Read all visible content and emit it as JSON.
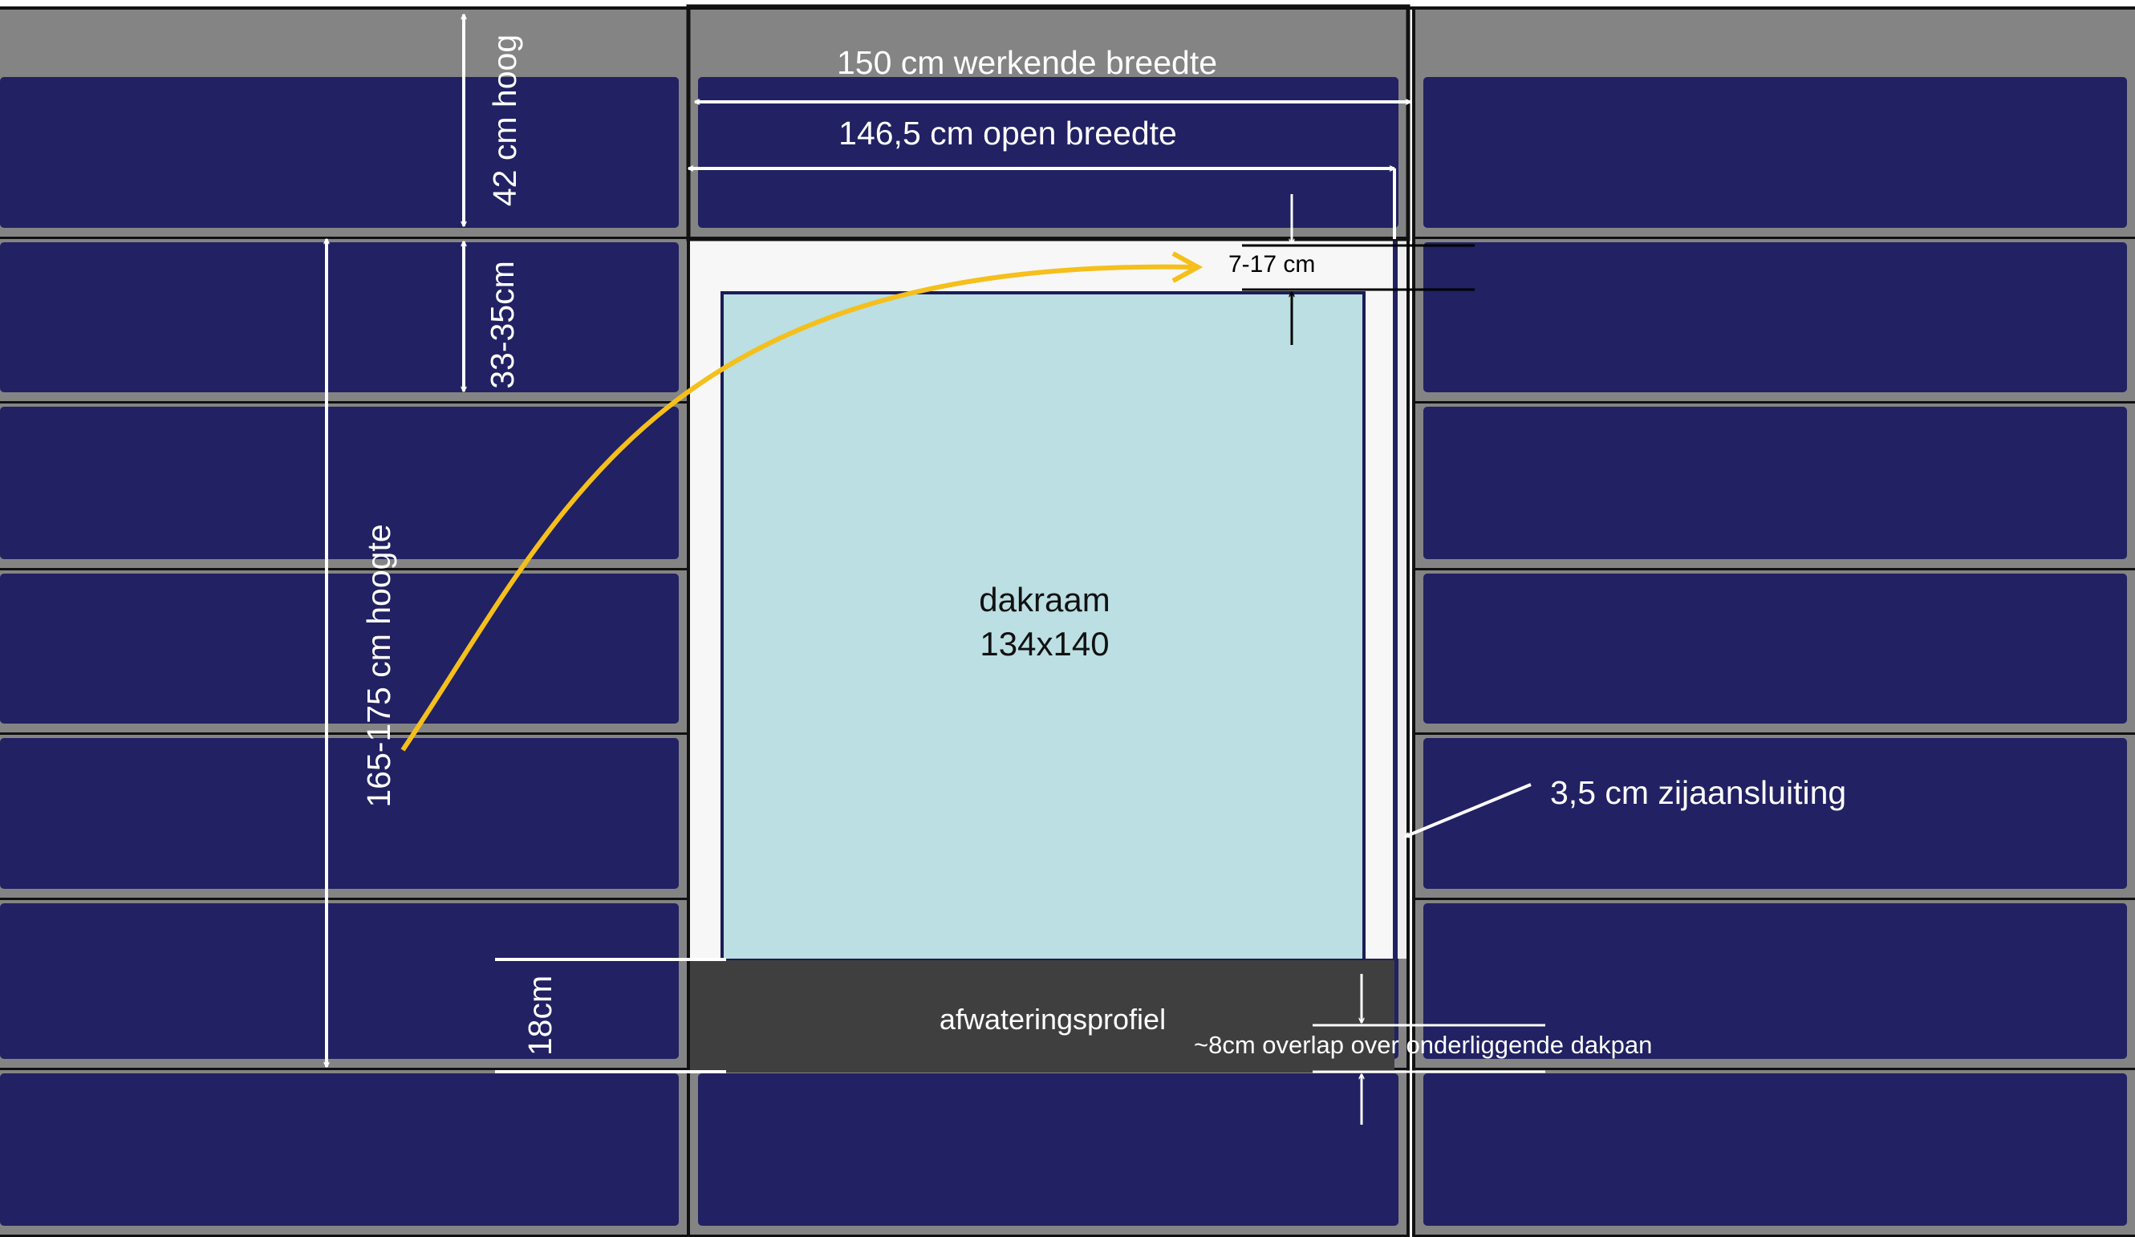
{
  "colors": {
    "tile": "#212163",
    "tile_border": "#848484",
    "grid_line": "#111111",
    "window_frame": "#f7f7f7",
    "window_glass": "#bbdfe3",
    "window_outline": "#1c1c56",
    "drain_profile": "#3f3f3f",
    "arrow_curve": "#f5bf1c",
    "annotation_light": "#ffffff",
    "annotation_dark": "#000000"
  },
  "labels": {
    "working_width": "150 cm werkende breedte",
    "open_width": "146,5 cm open breedte",
    "tile_height": "42 cm hoog",
    "batten_spacing": "33-35cm",
    "total_height": "165-175 cm hoogte",
    "top_gap": "7-17 cm",
    "window_line1": "dakraam",
    "window_line2": "134x140",
    "side_connection": "3,5 cm zijaansluiting",
    "drain_profile": "afwateringsprofiel",
    "overlap": "~8cm overlap over onderliggende dakpan",
    "drain_height": "18cm"
  }
}
